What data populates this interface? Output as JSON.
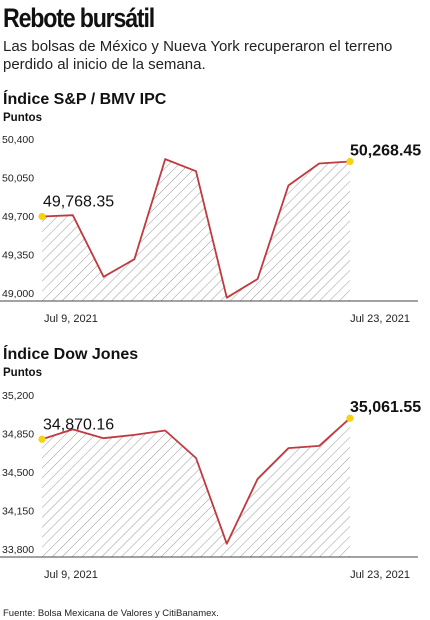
{
  "header": {
    "title": "Rebote bursátil",
    "subtitle": "Las bolsas de México y Nueva York recuperaron el terreno perdido al inicio de la semana."
  },
  "source": "Fuente: Bolsa Mexicana de Valores y CitiBanamex.",
  "colors": {
    "line": "#c0393f",
    "marker": "#f5d311",
    "hatch": "#9a9a9a",
    "axis": "#444444"
  },
  "chart_data": [
    {
      "type": "area",
      "title": "Índice S&P / BMV IPC",
      "ylabel": "Puntos",
      "ylim": [
        49000,
        50400
      ],
      "yticks": [
        50400,
        50050,
        49700,
        49350,
        49000
      ],
      "ytick_labels": [
        "50,400",
        "50,050",
        "49,700",
        "49,350",
        "49,000"
      ],
      "x_start_label": "Jul 9, 2021",
      "x_end_label": "Jul 23, 2021",
      "values": [
        49768.35,
        49780,
        49220,
        49380,
        50290,
        50180,
        49030,
        49200,
        50050,
        50250,
        50268.45
      ],
      "first_label": "49,768.35",
      "last_label": "50,268.45",
      "grid": false
    },
    {
      "type": "area",
      "title": "Índice Dow Jones",
      "ylabel": "Puntos",
      "ylim": [
        33800,
        35200
      ],
      "yticks": [
        35200,
        34850,
        34500,
        34150,
        33800
      ],
      "ytick_labels": [
        "35,200",
        "34,850",
        "34,500",
        "34,150",
        "33,800"
      ],
      "x_start_label": "Jul 9, 2021",
      "x_end_label": "Jul 23, 2021",
      "values": [
        34870.16,
        34960,
        34880,
        34910,
        34950,
        34700,
        33920,
        34510,
        34790,
        34810,
        35061.55
      ],
      "first_label": "34,870.16",
      "last_label": "35,061.55",
      "grid": false
    }
  ]
}
